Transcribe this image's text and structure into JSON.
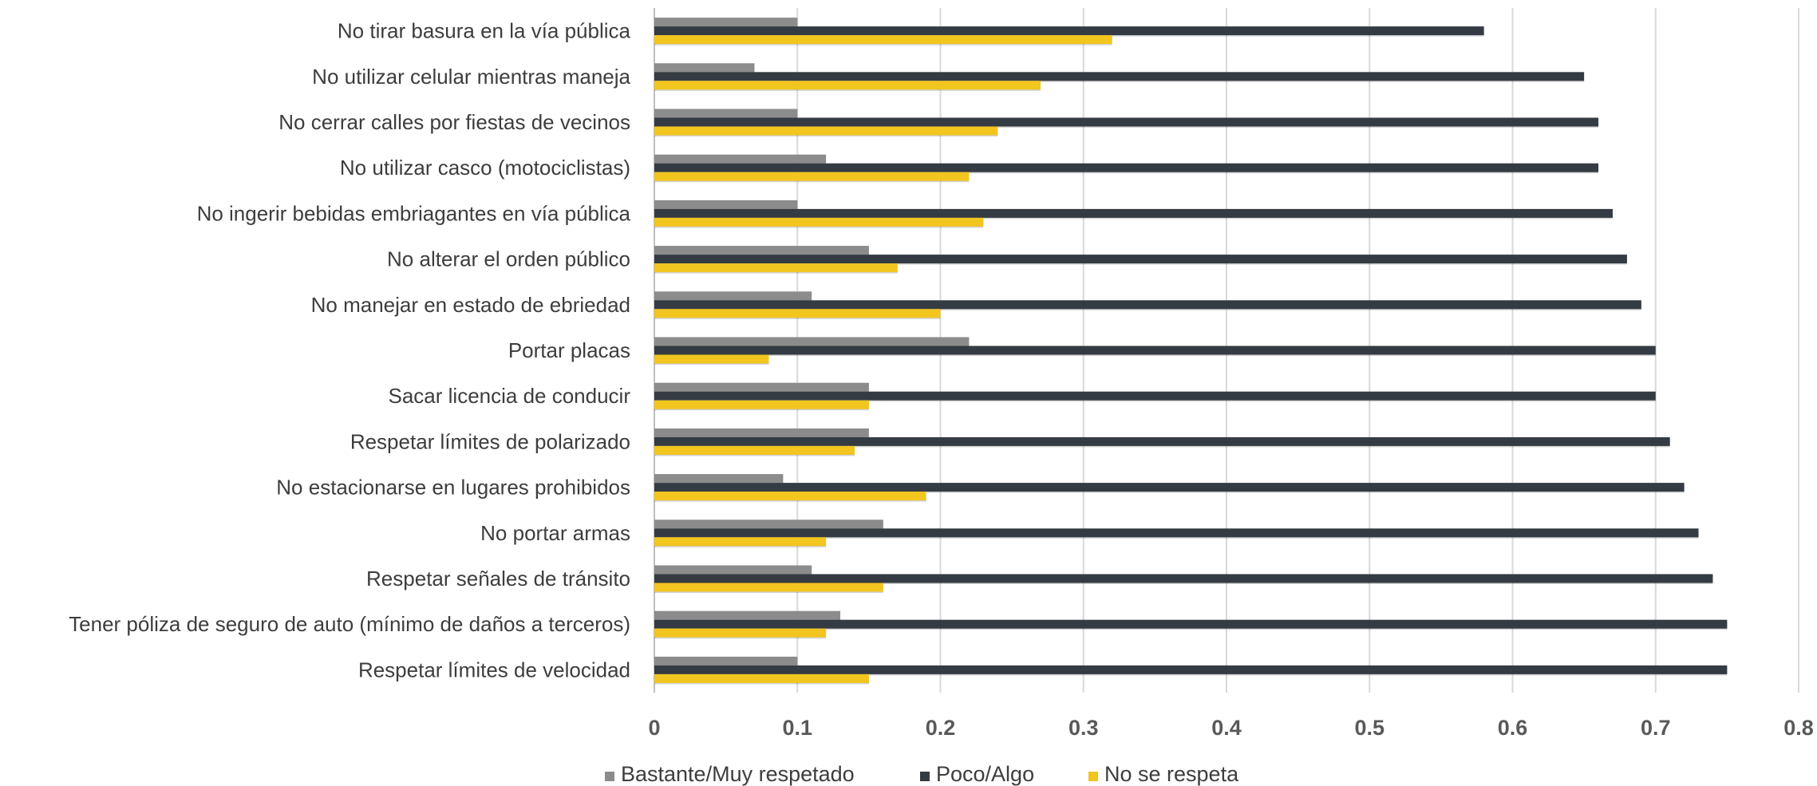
{
  "chart_data": {
    "type": "bar",
    "orientation": "horizontal",
    "categories": [
      "No tirar basura en la vía pública",
      "No utilizar celular mientras maneja",
      "No cerrar calles por fiestas de vecinos",
      "No utilizar casco (motociclistas)",
      "No ingerir bebidas embriagantes en vía pública",
      "No alterar el orden público",
      "No manejar en estado de ebriedad",
      "Portar placas",
      "Sacar licencia de conducir",
      "Respetar límites de polarizado",
      "No estacionarse en lugares prohibidos",
      "No portar armas",
      "Respetar señales de tránsito",
      "Tener póliza de seguro de auto (mínimo de daños a terceros)",
      "Respetar límites de velocidad"
    ],
    "series": [
      {
        "name": "Bastante/Muy respetado",
        "color": "#8c8c8c",
        "values": [
          0.1,
          0.07,
          0.1,
          0.12,
          0.1,
          0.15,
          0.11,
          0.22,
          0.15,
          0.15,
          0.09,
          0.16,
          0.11,
          0.13,
          0.1
        ]
      },
      {
        "name": "Poco/Algo",
        "color": "#353b42",
        "values": [
          0.58,
          0.65,
          0.66,
          0.66,
          0.67,
          0.68,
          0.69,
          0.7,
          0.7,
          0.71,
          0.72,
          0.73,
          0.74,
          0.75,
          0.75
        ]
      },
      {
        "name": "No se respeta",
        "color": "#f2c51f",
        "values": [
          0.32,
          0.27,
          0.24,
          0.22,
          0.23,
          0.17,
          0.2,
          0.08,
          0.15,
          0.14,
          0.19,
          0.12,
          0.16,
          0.12,
          0.15
        ]
      }
    ],
    "xlim": [
      0,
      0.8
    ],
    "xticks": [
      "0",
      "0.1",
      "0.2",
      "0.3",
      "0.4",
      "0.5",
      "0.6",
      "0.7",
      "0.8"
    ],
    "grid": true,
    "legend_position": "bottom",
    "title": "",
    "xlabel": "",
    "ylabel": ""
  }
}
